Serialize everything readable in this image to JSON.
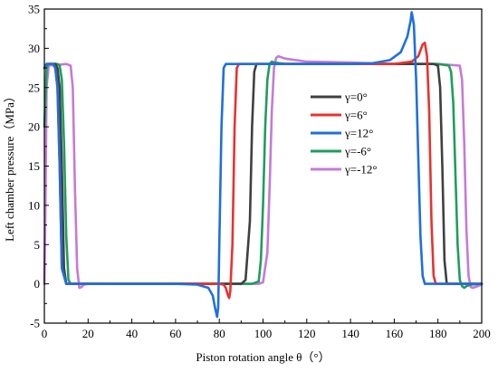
{
  "chart_data": {
    "type": "line",
    "title": "",
    "xlabel": "Piston rotation angle θ（°）",
    "ylabel": "Left chamber pressure（MPa）",
    "xlim": [
      0,
      200
    ],
    "ylim": [
      -5,
      35
    ],
    "xticks": [
      0,
      20,
      40,
      60,
      80,
      100,
      120,
      140,
      160,
      180,
      200
    ],
    "yticks": [
      -5,
      0,
      5,
      10,
      15,
      20,
      25,
      30,
      35
    ],
    "xtick_labels": [
      "0",
      "20",
      "40",
      "60",
      "80",
      "100",
      "120",
      "140",
      "160",
      "180",
      "200"
    ],
    "ytick_labels": [
      "-5",
      "0",
      "5",
      "10",
      "15",
      "20",
      "25",
      "30",
      "35"
    ],
    "grid": false,
    "legend_position": "right",
    "series": [
      {
        "name": "γ=0°",
        "color": "#404040",
        "x": [
          0,
          1,
          2,
          5,
          6,
          7,
          8,
          9,
          10,
          20,
          40,
          60,
          80,
          90,
          92,
          94,
          95,
          96,
          97,
          100,
          120,
          140,
          160,
          170,
          175,
          178,
          180,
          181,
          182,
          183,
          184,
          186,
          190,
          200
        ],
        "y": [
          27.5,
          28,
          28,
          28,
          27.5,
          25,
          15,
          2,
          0,
          0,
          0,
          0,
          0,
          0,
          0.5,
          8,
          20,
          27,
          28,
          28,
          28,
          28,
          28,
          28,
          28,
          28,
          27.8,
          25,
          15,
          3,
          0,
          0,
          0,
          0
        ]
      },
      {
        "name": "γ=6°",
        "color": "#e8322f",
        "x": [
          0,
          1,
          2,
          4,
          5,
          6,
          7,
          8,
          10,
          20,
          40,
          60,
          80,
          82,
          83,
          84,
          84.5,
          85,
          86,
          87,
          88,
          89,
          90,
          100,
          120,
          140,
          160,
          168,
          171,
          173,
          174,
          175,
          176,
          177,
          178,
          179,
          180,
          200
        ],
        "y": [
          27.5,
          28,
          28,
          28,
          27.5,
          25,
          15,
          2,
          0,
          0,
          0,
          0,
          0,
          -0.1,
          -0.5,
          -1.5,
          -1.8,
          -1,
          5,
          20,
          27.5,
          28,
          28,
          28,
          28,
          28,
          28,
          28.3,
          29,
          30.5,
          30.7,
          29,
          22,
          8,
          1,
          0,
          0,
          0
        ]
      },
      {
        "name": "γ=12°",
        "color": "#1f6fe0",
        "x": [
          0,
          1,
          2,
          4,
          5,
          6,
          7,
          8,
          10,
          20,
          40,
          60,
          70,
          75,
          77,
          78,
          79,
          79.5,
          80,
          81,
          82,
          83,
          84,
          90,
          100,
          120,
          140,
          150,
          158,
          163,
          166,
          167.5,
          168,
          169,
          170,
          171,
          172,
          173,
          174,
          175,
          200
        ],
        "y": [
          27.5,
          28,
          28,
          28,
          27.5,
          25,
          15,
          2,
          0,
          0,
          0,
          0,
          -0.1,
          -0.5,
          -1.5,
          -3,
          -4.2,
          -3,
          5,
          20,
          27.5,
          28,
          28,
          28,
          28,
          28,
          28,
          28.1,
          28.5,
          29.5,
          31.5,
          33.5,
          34.6,
          33,
          26,
          16,
          6,
          1,
          0,
          0,
          0
        ]
      },
      {
        "name": "γ=-6°",
        "color": "#1e9e5c",
        "x": [
          0,
          1,
          2,
          6,
          7,
          8,
          9,
          10,
          11,
          12,
          20,
          40,
          60,
          80,
          95,
          98,
          99,
          100,
          101,
          102,
          103,
          104,
          105,
          110,
          120,
          140,
          160,
          180,
          185,
          186,
          187,
          188,
          189,
          190,
          191,
          192,
          193,
          195,
          200
        ],
        "y": [
          20,
          27.5,
          28,
          28,
          27.8,
          26,
          18,
          6,
          0.5,
          0,
          0,
          0,
          0,
          0,
          0,
          0.3,
          3,
          10,
          20,
          26,
          28,
          28.3,
          28.2,
          28,
          28,
          28,
          28,
          28,
          27.8,
          27,
          23,
          14,
          5,
          0.5,
          -0.3,
          -0.5,
          -0.3,
          -0.1,
          0
        ]
      },
      {
        "name": "γ=-12°",
        "color": "#c57ad9",
        "x": [
          0,
          0.5,
          1,
          2,
          10,
          12,
          13,
          14,
          15,
          16,
          17,
          18,
          20,
          40,
          60,
          80,
          98,
          100,
          102,
          103,
          104,
          105,
          106,
          107,
          110,
          120,
          140,
          160,
          180,
          190,
          191,
          192,
          193,
          194,
          195,
          196,
          197,
          199,
          200
        ],
        "y": [
          0,
          10,
          25,
          27.8,
          28,
          27.8,
          25,
          12,
          2,
          -0.5,
          -0.4,
          -0.1,
          0,
          0,
          0,
          0,
          0,
          0.2,
          4,
          12,
          22,
          27.5,
          28.8,
          29,
          28.7,
          28.3,
          28.2,
          28,
          28,
          27.8,
          26,
          18,
          7,
          1,
          -0.4,
          -0.5,
          -0.4,
          -0.2,
          0
        ]
      }
    ]
  }
}
